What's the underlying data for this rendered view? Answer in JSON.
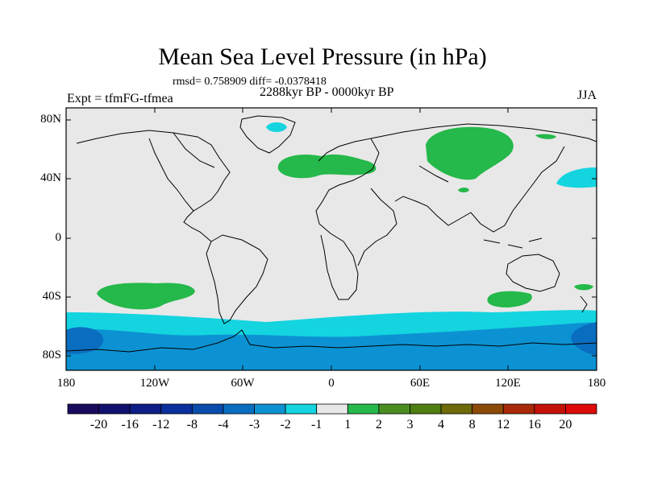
{
  "title": "Mean Sea Level Pressure (in hPa)",
  "stats": "rmsd= 0.758909 diff= -0.0378418",
  "period": "2288kyr BP - 0000kyr BP",
  "experiment": "Expt = tfmFG-tfmea",
  "season": "JJA",
  "map": {
    "lat_ticks": [
      "80N",
      "40N",
      "0",
      "40S",
      "80S"
    ],
    "lon_ticks": [
      "180",
      "120W",
      "60W",
      "0",
      "60E",
      "120E",
      "180"
    ],
    "background_color": "#e8e8e8",
    "land_outline_color": "#000000"
  },
  "anomaly_regions": [
    {
      "name": "greenland-high",
      "level": "-2"
    },
    {
      "name": "north-atlantic-europe",
      "level": "2"
    },
    {
      "name": "siberia",
      "level": "2"
    },
    {
      "name": "north-pacific",
      "level": "-2"
    },
    {
      "name": "south-pacific",
      "level": "2"
    },
    {
      "name": "south-indian",
      "level": "2"
    },
    {
      "name": "southern-ocean-band",
      "level": "-2"
    },
    {
      "name": "antarctic-ring",
      "level": "-3"
    },
    {
      "name": "southern-ocean-patches",
      "level": "-4"
    }
  ],
  "colorbar": {
    "labels": [
      "-20",
      "-16",
      "-12",
      "-8",
      "-4",
      "-3",
      "-2",
      "-1",
      "1",
      "2",
      "3",
      "4",
      "8",
      "12",
      "16",
      "20"
    ],
    "colors": [
      "#1a0a5e",
      "#12106e",
      "#0d1e86",
      "#0a309e",
      "#0a4cac",
      "#0a6ec0",
      "#0c92d2",
      "#14d4e0",
      "#e8e8e8",
      "#25b84a",
      "#4a8e22",
      "#4f7e12",
      "#6e6a0a",
      "#8c4a08",
      "#a82a08",
      "#c41208",
      "#dd0a08"
    ]
  }
}
